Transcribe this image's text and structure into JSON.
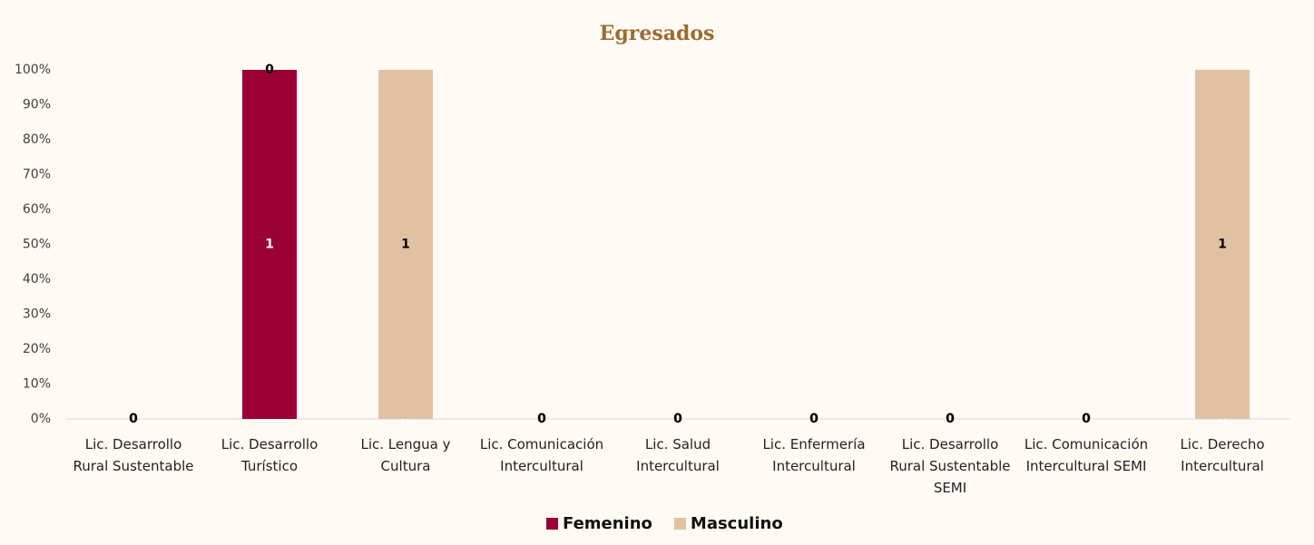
{
  "chart_data": {
    "type": "bar",
    "stacking": "percent",
    "title": "Egresados",
    "categories": [
      "Lic. Desarrollo Rural Sustentable",
      "Lic. Desarrollo Turístico",
      "Lic. Lengua y Cultura",
      "Lic. Comunicación Intercultural",
      "Lic. Salud Intercultural",
      "Lic. Enfermería Intercultural",
      "Lic. Desarrollo Rural Sustentable SEMI",
      "Lic. Comunicación Intercultural SEMI",
      "Lic. Derecho Intercultural"
    ],
    "series": [
      {
        "name": "Femenino",
        "color": "#9b0034",
        "values": [
          0,
          1,
          0,
          0,
          0,
          0,
          0,
          0,
          0
        ]
      },
      {
        "name": "Masculino",
        "color": "#e0c2a2",
        "values": [
          0,
          0,
          1,
          0,
          0,
          0,
          0,
          0,
          1
        ]
      }
    ],
    "ylim": [
      0,
      100
    ],
    "yticks": [
      {
        "value": 0,
        "label": "0%"
      },
      {
        "value": 10,
        "label": "10%"
      },
      {
        "value": 20,
        "label": "20%"
      },
      {
        "value": 30,
        "label": "30%"
      },
      {
        "value": 40,
        "label": "40%"
      },
      {
        "value": 50,
        "label": "50%"
      },
      {
        "value": 60,
        "label": "60%"
      },
      {
        "value": 70,
        "label": "70%"
      },
      {
        "value": 80,
        "label": "80%"
      },
      {
        "value": 90,
        "label": "90%"
      },
      {
        "value": 100,
        "label": "100%"
      }
    ],
    "legend": "bottom"
  }
}
